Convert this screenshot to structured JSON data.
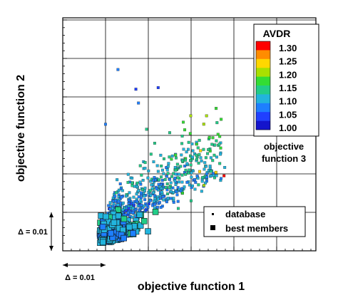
{
  "chart_data": {
    "type": "scatter",
    "title": "",
    "xlabel": "objective function 1",
    "ylabel": "objective function 2",
    "xlim": [
      0,
      0.06
    ],
    "ylim": [
      0,
      0.05
    ],
    "grid": true,
    "x_delta_label": "Δ = 0.01",
    "y_delta_label": "Δ = 0.01",
    "colorbar": {
      "title": "AVDR",
      "subtitle_line1": "objective",
      "subtitle_line2": "function 3",
      "ticks": [
        "1.30",
        "1.25",
        "1.20",
        "1.15",
        "1.10",
        "1.05",
        "1.00"
      ],
      "colors": [
        "#ff0000",
        "#ff8c00",
        "#ffd700",
        "#a8e000",
        "#33dd33",
        "#22cc88",
        "#22b4dd",
        "#1e7fff",
        "#2040ff",
        "#1414cc"
      ]
    },
    "legend": {
      "placement": "bottom-right",
      "entries": [
        {
          "label": "database",
          "marker": "small-square"
        },
        {
          "label": "best members",
          "marker": "large-square"
        }
      ]
    },
    "series": [
      {
        "name": "database",
        "points": [
          {
            "x": 0.0129,
            "y": 0.0471,
            "c": 1.07
          },
          {
            "x": 0.0223,
            "y": 0.0424,
            "c": 1.05
          },
          {
            "x": 0.0171,
            "y": 0.042,
            "c": 1.04
          },
          {
            "x": 0.0177,
            "y": 0.0384,
            "c": 1.07
          },
          {
            "x": 0.01,
            "y": 0.0329,
            "c": 1.08
          },
          {
            "x": 0.0196,
            "y": 0.0316,
            "c": 1.14
          },
          {
            "x": 0.0299,
            "y": 0.0351,
            "c": 1.2
          },
          {
            "x": 0.025,
            "y": 0.0307,
            "c": 1.13
          },
          {
            "x": 0.0254,
            "y": 0.0238,
            "c": 1.16
          },
          {
            "x": 0.0322,
            "y": 0.026,
            "c": 1.21
          },
          {
            "x": 0.037,
            "y": 0.0188,
            "c": 1.08
          },
          {
            "x": 0.0358,
            "y": 0.0204,
            "c": 1.21
          },
          {
            "x": 0.032,
            "y": 0.0206,
            "c": 1.23
          },
          {
            "x": 0.0377,
            "y": 0.0195,
            "c": 1.29
          },
          {
            "x": 0.033,
            "y": 0.017,
            "c": 1.2
          },
          {
            "x": 0.028,
            "y": 0.015,
            "c": 1.18
          },
          {
            "x": 0.03,
            "y": 0.013,
            "c": 1.15
          },
          {
            "x": 0.027,
            "y": 0.011,
            "c": 1.12
          }
        ]
      },
      {
        "name": "best members",
        "points": []
      }
    ],
    "cluster_seed": 7,
    "cluster_count": 620,
    "best_count": 150
  }
}
